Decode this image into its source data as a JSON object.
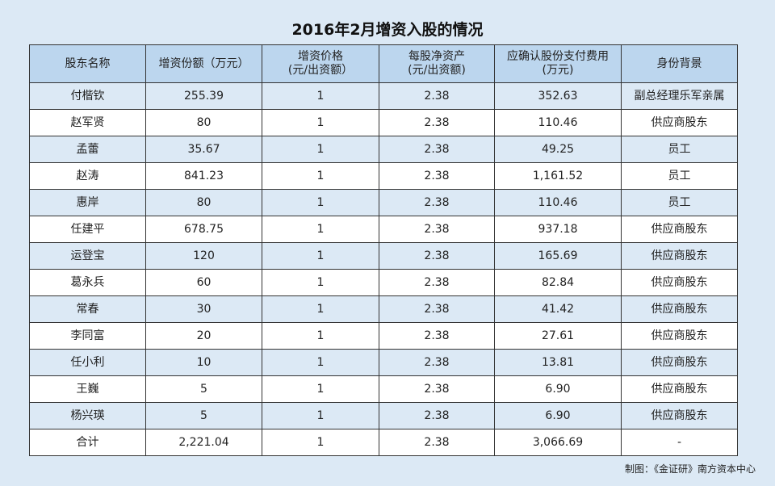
{
  "title": "2016年2月增资入股的情况",
  "headers": [
    {
      "line1": "股东名称",
      "line2": ""
    },
    {
      "line1": "增资份额（万元）",
      "line2": ""
    },
    {
      "line1": "增资价格",
      "line2": "(元/出资额）"
    },
    {
      "line1": "每股净资产",
      "line2": "(元/出资额)"
    },
    {
      "line1": "应确认股份支付费用",
      "line2": "(万元)"
    },
    {
      "line1": "身份背景",
      "line2": ""
    }
  ],
  "rows": [
    [
      "付楷钦",
      "255.39",
      "1",
      "2.38",
      "352.63",
      "副总经理乐军亲属"
    ],
    [
      "赵军贤",
      "80",
      "1",
      "2.38",
      "110.46",
      "供应商股东"
    ],
    [
      "孟蕾",
      "35.67",
      "1",
      "2.38",
      "49.25",
      "员工"
    ],
    [
      "赵涛",
      "841.23",
      "1",
      "2.38",
      "1,161.52",
      "员工"
    ],
    [
      "惠岸",
      "80",
      "1",
      "2.38",
      "110.46",
      "员工"
    ],
    [
      "任建平",
      "678.75",
      "1",
      "2.38",
      "937.18",
      "供应商股东"
    ],
    [
      "运登宝",
      "120",
      "1",
      "2.38",
      "165.69",
      "供应商股东"
    ],
    [
      "葛永兵",
      "60",
      "1",
      "2.38",
      "82.84",
      "供应商股东"
    ],
    [
      "常春",
      "30",
      "1",
      "2.38",
      "41.42",
      "供应商股东"
    ],
    [
      "李同富",
      "20",
      "1",
      "2.38",
      "27.61",
      "供应商股东"
    ],
    [
      "任小利",
      "10",
      "1",
      "2.38",
      "13.81",
      "供应商股东"
    ],
    [
      "王巍",
      "5",
      "1",
      "2.38",
      "6.90",
      "供应商股东"
    ],
    [
      "杨兴瑛",
      "5",
      "1",
      "2.38",
      "6.90",
      "供应商股东"
    ],
    [
      "合计",
      "2,221.04",
      "1",
      "2.38",
      "3,066.69",
      "-"
    ]
  ],
  "footer": "制图：《金证研》南方资本中心",
  "colors": {
    "background": "#dce9f5",
    "header": "#bcd6ee",
    "row_alt": "#ffffff"
  }
}
